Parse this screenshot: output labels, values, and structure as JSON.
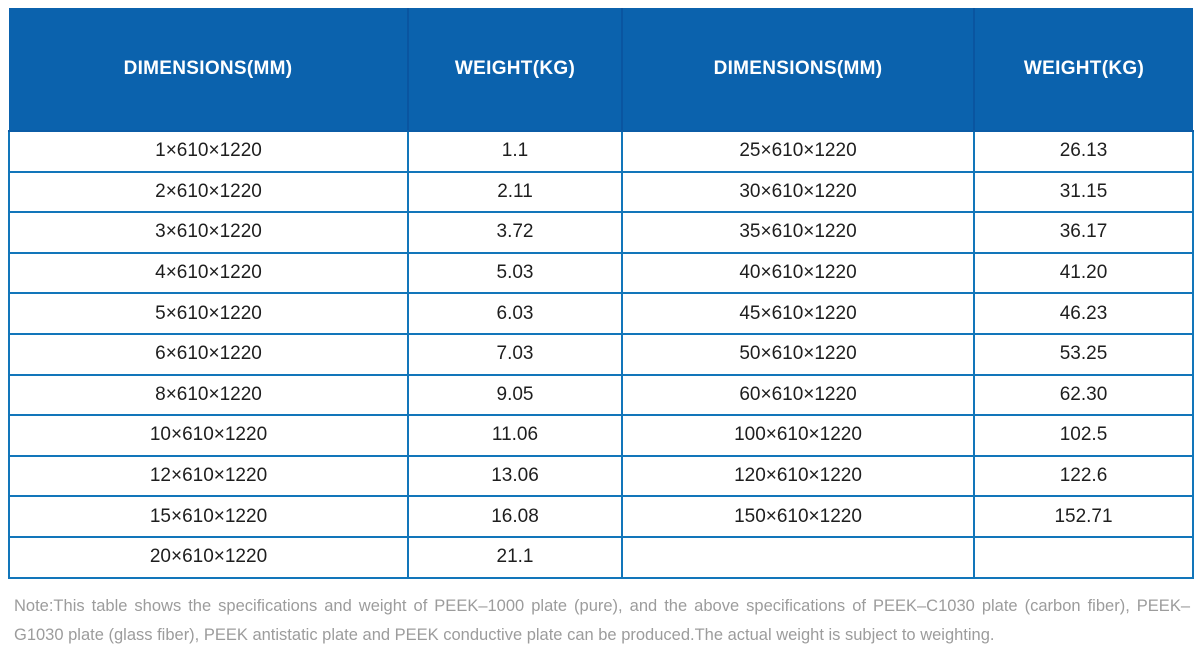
{
  "table": {
    "headers": [
      "DIMENSIONS(MM)",
      "WEIGHT(KG)",
      "DIMENSIONS(MM)",
      "WEIGHT(KG)"
    ],
    "rows": [
      [
        "1×610×1220",
        "1.1",
        "25×610×1220",
        "26.13"
      ],
      [
        "2×610×1220",
        "2.11",
        "30×610×1220",
        "31.15"
      ],
      [
        "3×610×1220",
        "3.72",
        "35×610×1220",
        "36.17"
      ],
      [
        "4×610×1220",
        "5.03",
        "40×610×1220",
        "41.20"
      ],
      [
        "5×610×1220",
        "6.03",
        "45×610×1220",
        "46.23"
      ],
      [
        "6×610×1220",
        "7.03",
        "50×610×1220",
        "53.25"
      ],
      [
        "8×610×1220",
        "9.05",
        "60×610×1220",
        "62.30"
      ],
      [
        "10×610×1220",
        "11.06",
        "100×610×1220",
        "102.5"
      ],
      [
        "12×610×1220",
        "13.06",
        "120×610×1220",
        "122.6"
      ],
      [
        "15×610×1220",
        "16.08",
        "150×610×1220",
        "152.71"
      ],
      [
        "20×610×1220",
        "21.1",
        "",
        ""
      ]
    ]
  },
  "note": "Note:This table shows the specifications and weight of PEEK–1000 plate (pure), and the above specifications of PEEK–C1030 plate (carbon fiber), PEEK–G1030 plate (glass fiber), PEEK antistatic plate and PEEK conductive plate can be produced.The actual weight is subject to weighting.",
  "colors": {
    "header_bg": "#0b62ad",
    "header_divider": "#0a55a0",
    "body_border": "#1276ba",
    "body_text": "#1e1e1e",
    "note_text": "#9c9c9c"
  }
}
